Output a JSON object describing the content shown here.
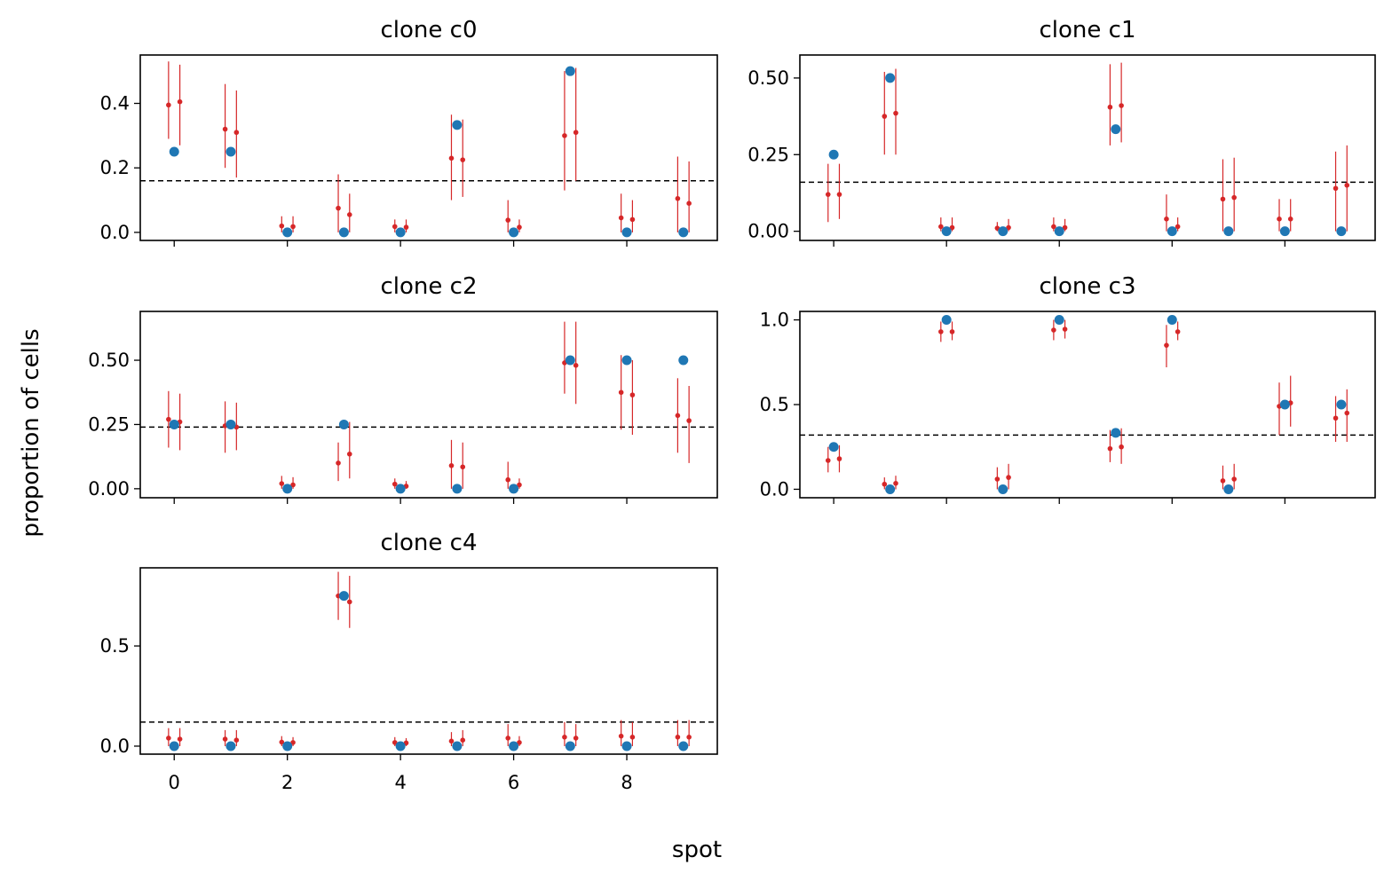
{
  "figure": {
    "xlabel": "spot",
    "ylabel": "proportion of cells",
    "colors": {
      "observed": "#1f77b4",
      "estimate": "#d62728",
      "reference": "#000000",
      "axis": "#000000"
    }
  },
  "chart_data": [
    {
      "type": "scatter",
      "title": "clone c0",
      "x": [
        0,
        1,
        2,
        3,
        4,
        5,
        6,
        7,
        8,
        9
      ],
      "xticks": [
        0,
        2,
        4,
        6,
        8
      ],
      "xtick_labels": [
        "0",
        "2",
        "4",
        "6",
        "8"
      ],
      "show_xtick_labels": false,
      "xlim": [
        -0.6,
        9.6
      ],
      "ylim": [
        -0.025,
        0.55
      ],
      "yticks": [
        0,
        0.2,
        0.4
      ],
      "ytick_labels": [
        "0.0",
        "0.2",
        "0.4"
      ],
      "observed": [
        0.25,
        0.25,
        0.0,
        0.0,
        0.0,
        0.333,
        0.0,
        0.5,
        0.0,
        0.0
      ],
      "est_a": {
        "mean": [
          0.395,
          0.32,
          0.02,
          0.075,
          0.018,
          0.23,
          0.038,
          0.3,
          0.045,
          0.105
        ],
        "lo": [
          0.29,
          0.2,
          0.0,
          0.0,
          0.0,
          0.1,
          0.0,
          0.13,
          0.0,
          0.0
        ],
        "hi": [
          0.53,
          0.46,
          0.05,
          0.18,
          0.04,
          0.365,
          0.1,
          0.5,
          0.12,
          0.235
        ]
      },
      "est_b": {
        "mean": [
          0.405,
          0.31,
          0.018,
          0.055,
          0.016,
          0.225,
          0.016,
          0.31,
          0.04,
          0.09
        ],
        "lo": [
          0.27,
          0.17,
          0.0,
          0.0,
          0.0,
          0.11,
          0.0,
          0.16,
          0.0,
          0.0
        ],
        "hi": [
          0.52,
          0.44,
          0.05,
          0.12,
          0.04,
          0.35,
          0.04,
          0.51,
          0.1,
          0.22
        ]
      },
      "hline": 0.16
    },
    {
      "type": "scatter",
      "title": "clone c1",
      "x": [
        0,
        1,
        2,
        3,
        4,
        5,
        6,
        7,
        8,
        9
      ],
      "xticks": [
        0,
        2,
        4,
        6,
        8
      ],
      "xtick_labels": [
        "0",
        "2",
        "4",
        "6",
        "8"
      ],
      "show_xtick_labels": false,
      "xlim": [
        -0.6,
        9.6
      ],
      "ylim": [
        -0.03,
        0.575
      ],
      "yticks": [
        0,
        0.25,
        0.5
      ],
      "ytick_labels": [
        "0.00",
        "0.25",
        "0.50"
      ],
      "observed": [
        0.25,
        0.5,
        0.0,
        0.0,
        0.0,
        0.333,
        0.0,
        0.0,
        0.0,
        0.0
      ],
      "est_a": {
        "mean": [
          0.12,
          0.375,
          0.015,
          0.01,
          0.015,
          0.405,
          0.04,
          0.105,
          0.04,
          0.14
        ],
        "lo": [
          0.03,
          0.25,
          0.0,
          0.0,
          0.0,
          0.28,
          0.0,
          0.0,
          0.0,
          0.0
        ],
        "hi": [
          0.22,
          0.52,
          0.045,
          0.03,
          0.045,
          0.545,
          0.12,
          0.235,
          0.105,
          0.26
        ]
      },
      "est_b": {
        "mean": [
          0.12,
          0.385,
          0.012,
          0.012,
          0.012,
          0.41,
          0.015,
          0.11,
          0.04,
          0.15
        ],
        "lo": [
          0.04,
          0.25,
          0.0,
          0.0,
          0.0,
          0.29,
          0.0,
          0.0,
          0.0,
          0.0
        ],
        "hi": [
          0.22,
          0.53,
          0.045,
          0.04,
          0.04,
          0.55,
          0.045,
          0.24,
          0.105,
          0.28
        ]
      },
      "hline": 0.16
    },
    {
      "type": "scatter",
      "title": "clone c2",
      "x": [
        0,
        1,
        2,
        3,
        4,
        5,
        6,
        7,
        8,
        9
      ],
      "xticks": [
        0,
        2,
        4,
        6,
        8
      ],
      "xtick_labels": [
        "0",
        "2",
        "4",
        "6",
        "8"
      ],
      "show_xtick_labels": false,
      "xlim": [
        -0.6,
        9.6
      ],
      "ylim": [
        -0.035,
        0.69
      ],
      "yticks": [
        0,
        0.25,
        0.5
      ],
      "ytick_labels": [
        "0.00",
        "0.25",
        "0.50"
      ],
      "observed": [
        0.25,
        0.25,
        0.0,
        0.25,
        0.0,
        0.0,
        0.0,
        0.5,
        0.5,
        0.5
      ],
      "est_a": {
        "mean": [
          0.27,
          0.245,
          0.02,
          0.1,
          0.018,
          0.09,
          0.035,
          0.49,
          0.375,
          0.285
        ],
        "lo": [
          0.16,
          0.14,
          0.0,
          0.03,
          0.0,
          0.0,
          0.0,
          0.37,
          0.23,
          0.14
        ],
        "hi": [
          0.38,
          0.34,
          0.05,
          0.18,
          0.04,
          0.19,
          0.105,
          0.65,
          0.52,
          0.43
        ]
      },
      "est_b": {
        "mean": [
          0.26,
          0.24,
          0.015,
          0.135,
          0.01,
          0.085,
          0.015,
          0.48,
          0.365,
          0.265
        ],
        "lo": [
          0.15,
          0.15,
          0.0,
          0.04,
          0.0,
          0.0,
          0.0,
          0.33,
          0.21,
          0.1
        ],
        "hi": [
          0.37,
          0.335,
          0.045,
          0.26,
          0.03,
          0.18,
          0.04,
          0.65,
          0.5,
          0.4
        ]
      },
      "hline": 0.24
    },
    {
      "type": "scatter",
      "title": "clone c3",
      "x": [
        0,
        1,
        2,
        3,
        4,
        5,
        6,
        7,
        8,
        9
      ],
      "xticks": [
        0,
        2,
        4,
        6,
        8
      ],
      "xtick_labels": [
        "0",
        "2",
        "4",
        "6",
        "8"
      ],
      "show_xtick_labels": false,
      "xlim": [
        -0.6,
        9.6
      ],
      "ylim": [
        -0.05,
        1.05
      ],
      "yticks": [
        0,
        0.5,
        1.0
      ],
      "ytick_labels": [
        "0.0",
        "0.5",
        "1.0"
      ],
      "observed": [
        0.25,
        0.0,
        1.0,
        0.0,
        1.0,
        0.333,
        1.0,
        0.0,
        0.5,
        0.5
      ],
      "est_a": {
        "mean": [
          0.17,
          0.03,
          0.93,
          0.06,
          0.94,
          0.24,
          0.85,
          0.05,
          0.49,
          0.42
        ],
        "lo": [
          0.1,
          0.0,
          0.87,
          0.0,
          0.88,
          0.16,
          0.72,
          0.0,
          0.32,
          0.28
        ],
        "hi": [
          0.25,
          0.07,
          0.99,
          0.13,
          1.0,
          0.35,
          0.97,
          0.14,
          0.63,
          0.55
        ]
      },
      "est_b": {
        "mean": [
          0.18,
          0.035,
          0.93,
          0.07,
          0.945,
          0.25,
          0.93,
          0.06,
          0.51,
          0.45
        ],
        "lo": [
          0.1,
          0.0,
          0.88,
          0.0,
          0.89,
          0.15,
          0.88,
          0.0,
          0.37,
          0.28
        ],
        "hi": [
          0.26,
          0.08,
          0.99,
          0.15,
          1.0,
          0.36,
          0.99,
          0.15,
          0.67,
          0.59
        ]
      },
      "hline": 0.32
    },
    {
      "type": "scatter",
      "title": "clone c4",
      "x": [
        0,
        1,
        2,
        3,
        4,
        5,
        6,
        7,
        8,
        9
      ],
      "xticks": [
        0,
        2,
        4,
        6,
        8
      ],
      "xtick_labels": [
        "0",
        "2",
        "4",
        "6",
        "8"
      ],
      "show_xtick_labels": true,
      "xlim": [
        -0.6,
        9.6
      ],
      "ylim": [
        -0.04,
        0.89
      ],
      "yticks": [
        0,
        0.5
      ],
      "ytick_labels": [
        "0.0",
        "0.5"
      ],
      "observed": [
        0.0,
        0.0,
        0.0,
        0.75,
        0.0,
        0.0,
        0.0,
        0.0,
        0.0,
        0.0
      ],
      "est_a": {
        "mean": [
          0.04,
          0.035,
          0.02,
          0.75,
          0.018,
          0.025,
          0.04,
          0.045,
          0.05,
          0.045
        ],
        "lo": [
          0.0,
          0.0,
          0.0,
          0.63,
          0.0,
          0.0,
          0.0,
          0.0,
          0.0,
          0.0
        ],
        "hi": [
          0.09,
          0.08,
          0.05,
          0.87,
          0.045,
          0.07,
          0.11,
          0.12,
          0.13,
          0.13
        ]
      },
      "est_b": {
        "mean": [
          0.035,
          0.03,
          0.018,
          0.72,
          0.016,
          0.03,
          0.018,
          0.04,
          0.045,
          0.045
        ],
        "lo": [
          0.0,
          0.0,
          0.0,
          0.59,
          0.0,
          0.0,
          0.0,
          0.0,
          0.0,
          0.0
        ],
        "hi": [
          0.09,
          0.08,
          0.045,
          0.85,
          0.04,
          0.08,
          0.05,
          0.11,
          0.12,
          0.13
        ]
      },
      "hline": 0.12
    }
  ]
}
